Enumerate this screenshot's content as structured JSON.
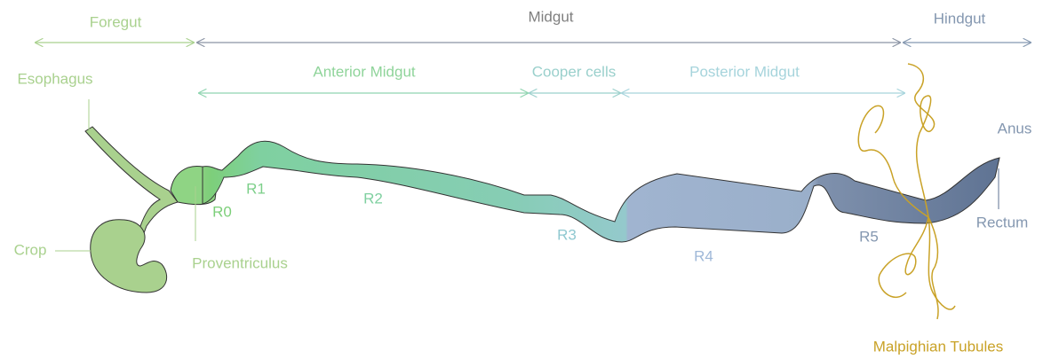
{
  "sections": [
    {
      "label": "Foregut"
    },
    {
      "label": "Midgut"
    },
    {
      "label": "Hindgut"
    }
  ],
  "midgut_parts": [
    {
      "label": "Anterior Midgut"
    },
    {
      "label": "Cooper cells"
    },
    {
      "label": "Posterior Midgut"
    }
  ],
  "regions": [
    {
      "label": "R0"
    },
    {
      "label": "R1"
    },
    {
      "label": "R2"
    },
    {
      "label": "R3"
    },
    {
      "label": "R4"
    },
    {
      "label": "R5"
    }
  ],
  "organs": [
    {
      "label": "Esophagus"
    },
    {
      "label": "Crop"
    },
    {
      "label": "Proventriculus"
    },
    {
      "label": "Anus"
    },
    {
      "label": "Rectum"
    },
    {
      "label": "Malpighian Tubules"
    }
  ]
}
